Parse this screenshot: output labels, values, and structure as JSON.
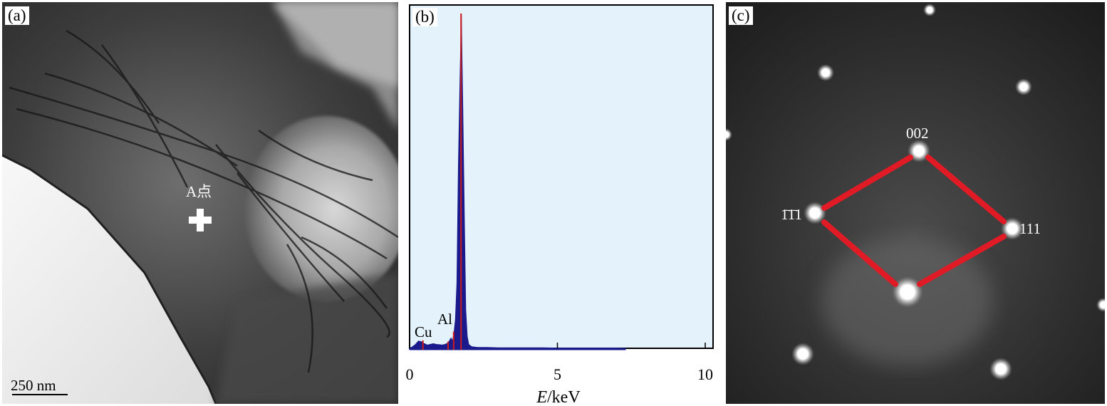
{
  "panel_a": {
    "label": "(a)",
    "point_label": "A点",
    "scale_bar": "250 nm"
  },
  "panel_b": {
    "label": "(b)",
    "peak_labels": [
      "Cu",
      "Al"
    ],
    "xlabel_italic": "E",
    "xlabel_unit": "/keV",
    "colors": {
      "background": "#e4f3fb",
      "spectrum": "#1a1a8c",
      "marker": "#cc1a1a"
    }
  },
  "panel_c": {
    "label": "(c)",
    "spots": {
      "top": "002",
      "left": "1̄1̄1",
      "right": "111"
    },
    "colors": {
      "rhombus": "#e11b26"
    }
  },
  "chart_data": {
    "type": "area",
    "xlim": [
      0,
      10
    ],
    "xticks": [
      0,
      5,
      10
    ],
    "tick_labels": [
      "0",
      "5",
      "10"
    ],
    "annotations": [
      "Cu",
      "Al"
    ],
    "x": [
      0.0,
      0.1,
      0.2,
      0.3,
      0.4,
      0.5,
      0.6,
      0.7,
      0.8,
      0.9,
      1.0,
      1.1,
      1.2,
      1.3,
      1.4,
      1.45,
      1.5,
      1.55,
      1.6,
      1.65,
      1.7,
      1.75,
      1.8,
      1.85,
      1.9,
      1.95,
      2.0,
      2.1,
      2.3,
      2.6,
      3.0,
      3.5,
      4.0,
      4.5,
      5.0,
      5.5,
      6.0,
      6.5,
      7.0,
      7.3
    ],
    "y": [
      0.4,
      0.9,
      1.6,
      2.6,
      2.4,
      1.8,
      1.4,
      1.6,
      1.8,
      1.6,
      1.5,
      1.4,
      1.6,
      2.0,
      3.5,
      2.6,
      5.0,
      9.0,
      20.0,
      55.0,
      78.0,
      100.0,
      72.0,
      40.0,
      12.0,
      4.0,
      1.6,
      0.9,
      0.7,
      0.7,
      0.6,
      0.6,
      0.6,
      0.6,
      0.5,
      0.5,
      0.5,
      0.5,
      0.5,
      0.4
    ],
    "markers": [
      0.45,
      1.3,
      1.49,
      1.74
    ]
  }
}
